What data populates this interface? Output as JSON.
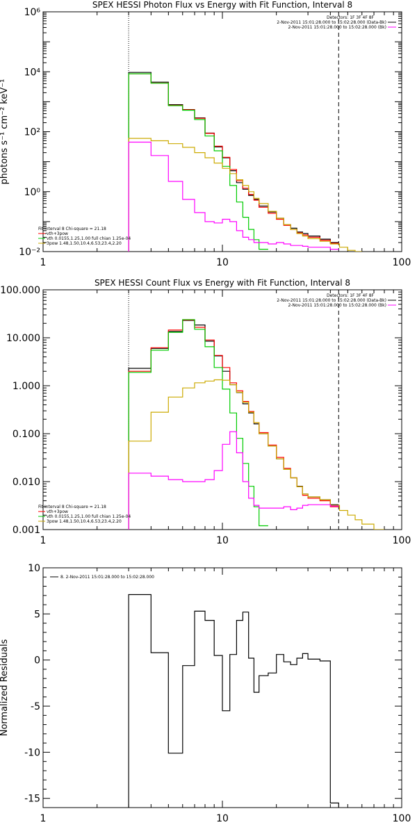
{
  "chart_data": [
    {
      "type": "line",
      "title": "SPEX HESSI Photon Flux vs Energy with Fit Function, Interval 8",
      "xlabel": "",
      "ylabel": "photons s⁻¹ cm⁻² keV⁻¹",
      "xscale": "log",
      "yscale": "log",
      "xlim": [
        1,
        100
      ],
      "ylim": [
        0.01,
        1000000
      ],
      "x_ticks": [
        1,
        10,
        100
      ],
      "x_tick_labels": [
        "1",
        "10",
        "100"
      ],
      "y_ticks": [
        0.01,
        1,
        100,
        10000,
        1000000
      ],
      "y_tick_labels": [
        "10⁻²",
        "10⁰",
        "10²",
        "10⁴",
        "10⁶"
      ],
      "vlines": [
        {
          "x": 3.0,
          "style": "dotted"
        },
        {
          "x": 44.5,
          "style": "dashed"
        }
      ],
      "legend_top": {
        "header": "Detectors: 1F 3F 4F 8F",
        "entries": [
          {
            "text": "2-Nov-2011 15:01:28.000 to 15:02:28.000 (Data-Bk)",
            "color": "#000000"
          },
          {
            "text": "2-Nov-2011 15:01:28.000 to 15:02:28.000 (Bk)",
            "color": "#ff00ff"
          }
        ]
      },
      "legend_bottom": {
        "header": "Fit Interval 8   Chi-square = 21.18",
        "entries": [
          {
            "text": "vth+3pow",
            "color": "#ff0000"
          },
          {
            "text": "vth 0.0155,1.25,1.00  full chian 1.25e-04",
            "color": "#00cc00"
          },
          {
            "text": "3pow 1.48,1.50,10.4,6.53,23.4,2.20",
            "color": "#ccaa00"
          }
        ]
      },
      "series": [
        {
          "color": "#000000",
          "edges": [
            3.0,
            4.0,
            5.0,
            6.0,
            7.0,
            8.0,
            9.0,
            10.0,
            11.0,
            12.0,
            13.0,
            14.0,
            15.0,
            16.0,
            18.0,
            20.0,
            22.0,
            24.0,
            26.0,
            28.0,
            30.0,
            35.0,
            40.0,
            44.5
          ],
          "values": [
            9500,
            4500,
            800,
            550,
            290,
            90,
            31,
            13.5,
            5.0,
            2.0,
            1.2,
            0.75,
            0.55,
            0.33,
            0.21,
            0.13,
            0.08,
            0.06,
            0.045,
            0.04,
            0.033,
            0.026,
            0.02
          ]
        },
        {
          "color": "#ff0000",
          "edges": [
            3.0,
            4.0,
            5.0,
            6.0,
            7.0,
            8.0,
            9.0,
            10.0,
            11.0,
            12.0,
            13.0,
            14.0,
            15.0,
            16.0,
            18.0,
            20.0,
            22.0,
            24.0,
            26.0,
            28.0,
            30.0,
            35.0,
            40.0,
            44.5
          ],
          "values": [
            8600,
            4200,
            760,
            540,
            280,
            88,
            33,
            14.0,
            5.5,
            2.3,
            1.3,
            0.8,
            0.52,
            0.3,
            0.19,
            0.12,
            0.075,
            0.055,
            0.042,
            0.036,
            0.03,
            0.024,
            0.019
          ]
        },
        {
          "color": "#00cc00",
          "edges": [
            3.0,
            4.0,
            5.0,
            6.0,
            7.0,
            8.0,
            9.0,
            10.0,
            11.0,
            12.0,
            13.0,
            14.0,
            15.0,
            16.0,
            18.0
          ],
          "values": [
            8600,
            4150,
            740,
            520,
            255,
            72,
            23,
            7.0,
            1.6,
            0.45,
            0.14,
            0.055,
            0.025,
            0.012
          ]
        },
        {
          "color": "#ccaa00",
          "edges": [
            3.0,
            4.0,
            5.0,
            6.0,
            7.0,
            8.0,
            9.0,
            10.0,
            11.0,
            12.0,
            13.0,
            14.0,
            15.0,
            16.0,
            18.0,
            20.0,
            22.0,
            24.0,
            26.0,
            28.0,
            30.0,
            35.0,
            40.0,
            45.0,
            50.0,
            55.0,
            60.0
          ],
          "values": [
            60,
            50,
            40,
            30,
            20,
            13.5,
            9.0,
            6.0,
            4.0,
            2.5,
            1.6,
            1.0,
            0.6,
            0.4,
            0.22,
            0.13,
            0.08,
            0.055,
            0.04,
            0.033,
            0.027,
            0.022,
            0.018,
            0.014,
            0.011,
            0.009
          ]
        },
        {
          "color": "#ff00ff",
          "edges": [
            3.0,
            4.0,
            5.0,
            6.0,
            7.0,
            8.0,
            9.0,
            10.0,
            11.0,
            12.0,
            13.0,
            14.0,
            15.0,
            16.0,
            18.0,
            20.0,
            22.0,
            24.0,
            26.0,
            28.0,
            30.0,
            35.0,
            40.0,
            44.5
          ],
          "values": [
            45,
            16,
            2.2,
            0.55,
            0.2,
            0.1,
            0.09,
            0.12,
            0.1,
            0.05,
            0.03,
            0.025,
            0.02,
            0.02,
            0.018,
            0.02,
            0.018,
            0.016,
            0.016,
            0.015,
            0.014,
            0.014,
            0.012
          ]
        }
      ]
    },
    {
      "type": "line",
      "title": "SPEX HESSI Count Flux vs Energy with Fit Function, Interval 8",
      "xlabel": "",
      "ylabel": "",
      "xscale": "log",
      "yscale": "log",
      "xlim": [
        1,
        100
      ],
      "ylim": [
        0.001,
        100
      ],
      "x_ticks": [
        1,
        10,
        100
      ],
      "x_tick_labels": [
        "1",
        "10",
        "100"
      ],
      "y_ticks": [
        0.001,
        0.01,
        0.1,
        1,
        10,
        100
      ],
      "y_tick_labels": [
        "0.001",
        "0.010",
        "0.100",
        "1.000",
        "10.000",
        "100.000"
      ],
      "vlines": [
        {
          "x": 3.0,
          "style": "dotted"
        },
        {
          "x": 44.5,
          "style": "dashed"
        }
      ],
      "legend_top": {
        "header": "Detectors: 1F 3F 4F 8F",
        "entries": [
          {
            "text": "2-Nov-2011 15:01:28.000 to 15:02:28.000 (Data-Bk)",
            "color": "#000000"
          },
          {
            "text": "2-Nov-2011 15:01:28.000 to 15:02:28.000 (Bk)",
            "color": "#ff00ff"
          }
        ]
      },
      "legend_bottom": {
        "header": "Fit Interval 8   Chi-square = 21.18",
        "entries": [
          {
            "text": "vth+3pow",
            "color": "#ff0000"
          },
          {
            "text": "vth 0.0155,1.25,1.00  full chian 1.25e-04",
            "color": "#00cc00"
          },
          {
            "text": "3pow 1.48,1.50,10.4,6.53,23.4,2.20",
            "color": "#ccaa00"
          }
        ]
      },
      "series": [
        {
          "color": "#000000",
          "edges": [
            3.0,
            4.0,
            5.0,
            6.0,
            7.0,
            8.0,
            9.0,
            10.0,
            11.0,
            12.0,
            13.0,
            14.0,
            15.0,
            16.0,
            18.0,
            20.0,
            22.0,
            24.0,
            26.0,
            28.0,
            30.0,
            35.0,
            40.0,
            44.5
          ],
          "values": [
            2.3,
            6.0,
            13.5,
            23.0,
            18.5,
            8.5,
            4.2,
            2.0,
            1.05,
            0.72,
            0.42,
            0.27,
            0.16,
            0.1,
            0.055,
            0.03,
            0.018,
            0.012,
            0.008,
            0.0055,
            0.0048,
            0.0042,
            0.0033
          ]
        },
        {
          "color": "#ff0000",
          "edges": [
            3.0,
            4.0,
            5.0,
            6.0,
            7.0,
            8.0,
            9.0,
            10.0,
            11.0,
            12.0,
            13.0,
            14.0,
            15.0,
            16.0,
            18.0,
            20.0,
            22.0,
            24.0,
            26.0,
            28.0,
            30.0,
            35.0,
            40.0,
            44.5
          ],
          "values": [
            2.0,
            6.2,
            14.5,
            23.5,
            16.5,
            9.0,
            4.3,
            2.4,
            1.15,
            0.78,
            0.47,
            0.29,
            0.17,
            0.105,
            0.058,
            0.032,
            0.019,
            0.012,
            0.0078,
            0.0052,
            0.0045,
            0.004,
            0.003
          ]
        },
        {
          "color": "#00cc00",
          "edges": [
            3.0,
            4.0,
            5.0,
            6.0,
            7.0,
            8.0,
            9.0,
            10.0,
            11.0,
            12.0,
            13.0,
            14.0,
            15.0,
            16.0,
            18.0
          ],
          "values": [
            1.9,
            5.5,
            13.0,
            24.0,
            15.0,
            6.5,
            2.4,
            0.85,
            0.27,
            0.08,
            0.024,
            0.008,
            0.003,
            0.0012
          ]
        },
        {
          "color": "#ccaa00",
          "edges": [
            3.0,
            4.0,
            5.0,
            6.0,
            7.0,
            8.0,
            9.0,
            10.0,
            11.0,
            12.0,
            13.0,
            14.0,
            15.0,
            16.0,
            18.0,
            20.0,
            22.0,
            24.0,
            26.0,
            28.0,
            30.0,
            35.0,
            40.0,
            45.0,
            50.0,
            55.0,
            60.0,
            70.0,
            80.0
          ],
          "values": [
            0.07,
            0.28,
            0.58,
            0.9,
            1.15,
            1.25,
            1.33,
            1.3,
            1.05,
            0.73,
            0.45,
            0.28,
            0.17,
            0.1,
            0.055,
            0.03,
            0.018,
            0.012,
            0.0078,
            0.0055,
            0.0048,
            0.0042,
            0.0032,
            0.0025,
            0.002,
            0.0016,
            0.0013,
            0.001
          ]
        },
        {
          "color": "#ff00ff",
          "edges": [
            3.0,
            4.0,
            5.0,
            6.0,
            7.0,
            8.0,
            9.0,
            10.0,
            11.0,
            12.0,
            13.0,
            14.0,
            15.0,
            16.0,
            18.0,
            20.0,
            22.0,
            24.0,
            26.0,
            28.0,
            30.0,
            35.0,
            40.0,
            44.5
          ],
          "values": [
            0.015,
            0.013,
            0.011,
            0.01,
            0.01,
            0.011,
            0.017,
            0.06,
            0.11,
            0.04,
            0.01,
            0.0045,
            0.0032,
            0.0028,
            0.0028,
            0.0028,
            0.003,
            0.0026,
            0.0028,
            0.0032,
            0.0033,
            0.0033,
            0.0031
          ]
        }
      ]
    },
    {
      "type": "line",
      "title": "",
      "xlabel": "",
      "ylabel": "Normalized Residuals",
      "xscale": "log",
      "yscale": "linear",
      "xlim": [
        1,
        100
      ],
      "ylim": [
        -16,
        10
      ],
      "x_ticks": [
        1,
        10,
        100
      ],
      "x_tick_labels": [
        "1",
        "10",
        "100"
      ],
      "y_ticks": [
        -15,
        -10,
        -5,
        0,
        5,
        10
      ],
      "y_tick_labels": [
        "-15",
        "-10",
        "-5",
        "0",
        "5",
        "10"
      ],
      "vlines": [],
      "legend_top": {
        "header": "",
        "entries": [
          {
            "text": "8.  2-Nov-2011 15:01:28.000 to 15:02:28.000",
            "color": "#000000"
          }
        ]
      },
      "legend_bottom": {
        "header": "",
        "entries": []
      },
      "series": [
        {
          "color": "#000000",
          "edges": [
            3.0,
            4.0,
            5.0,
            6.0,
            7.0,
            8.0,
            9.0,
            10.0,
            11.0,
            12.0,
            13.0,
            14.0,
            15.0,
            16.0,
            18.0,
            20.0,
            22.0,
            24.0,
            26.0,
            28.0,
            30.0,
            35.0,
            40.0,
            44.5
          ],
          "values": [
            7.1,
            0.8,
            -10.1,
            -0.6,
            5.3,
            4.3,
            0.5,
            -5.5,
            0.6,
            4.3,
            5.2,
            0.2,
            -3.5,
            -1.7,
            -1.4,
            0.6,
            -0.2,
            -0.5,
            0.2,
            0.7,
            0.1,
            -0.1,
            -15.5
          ]
        }
      ]
    }
  ]
}
